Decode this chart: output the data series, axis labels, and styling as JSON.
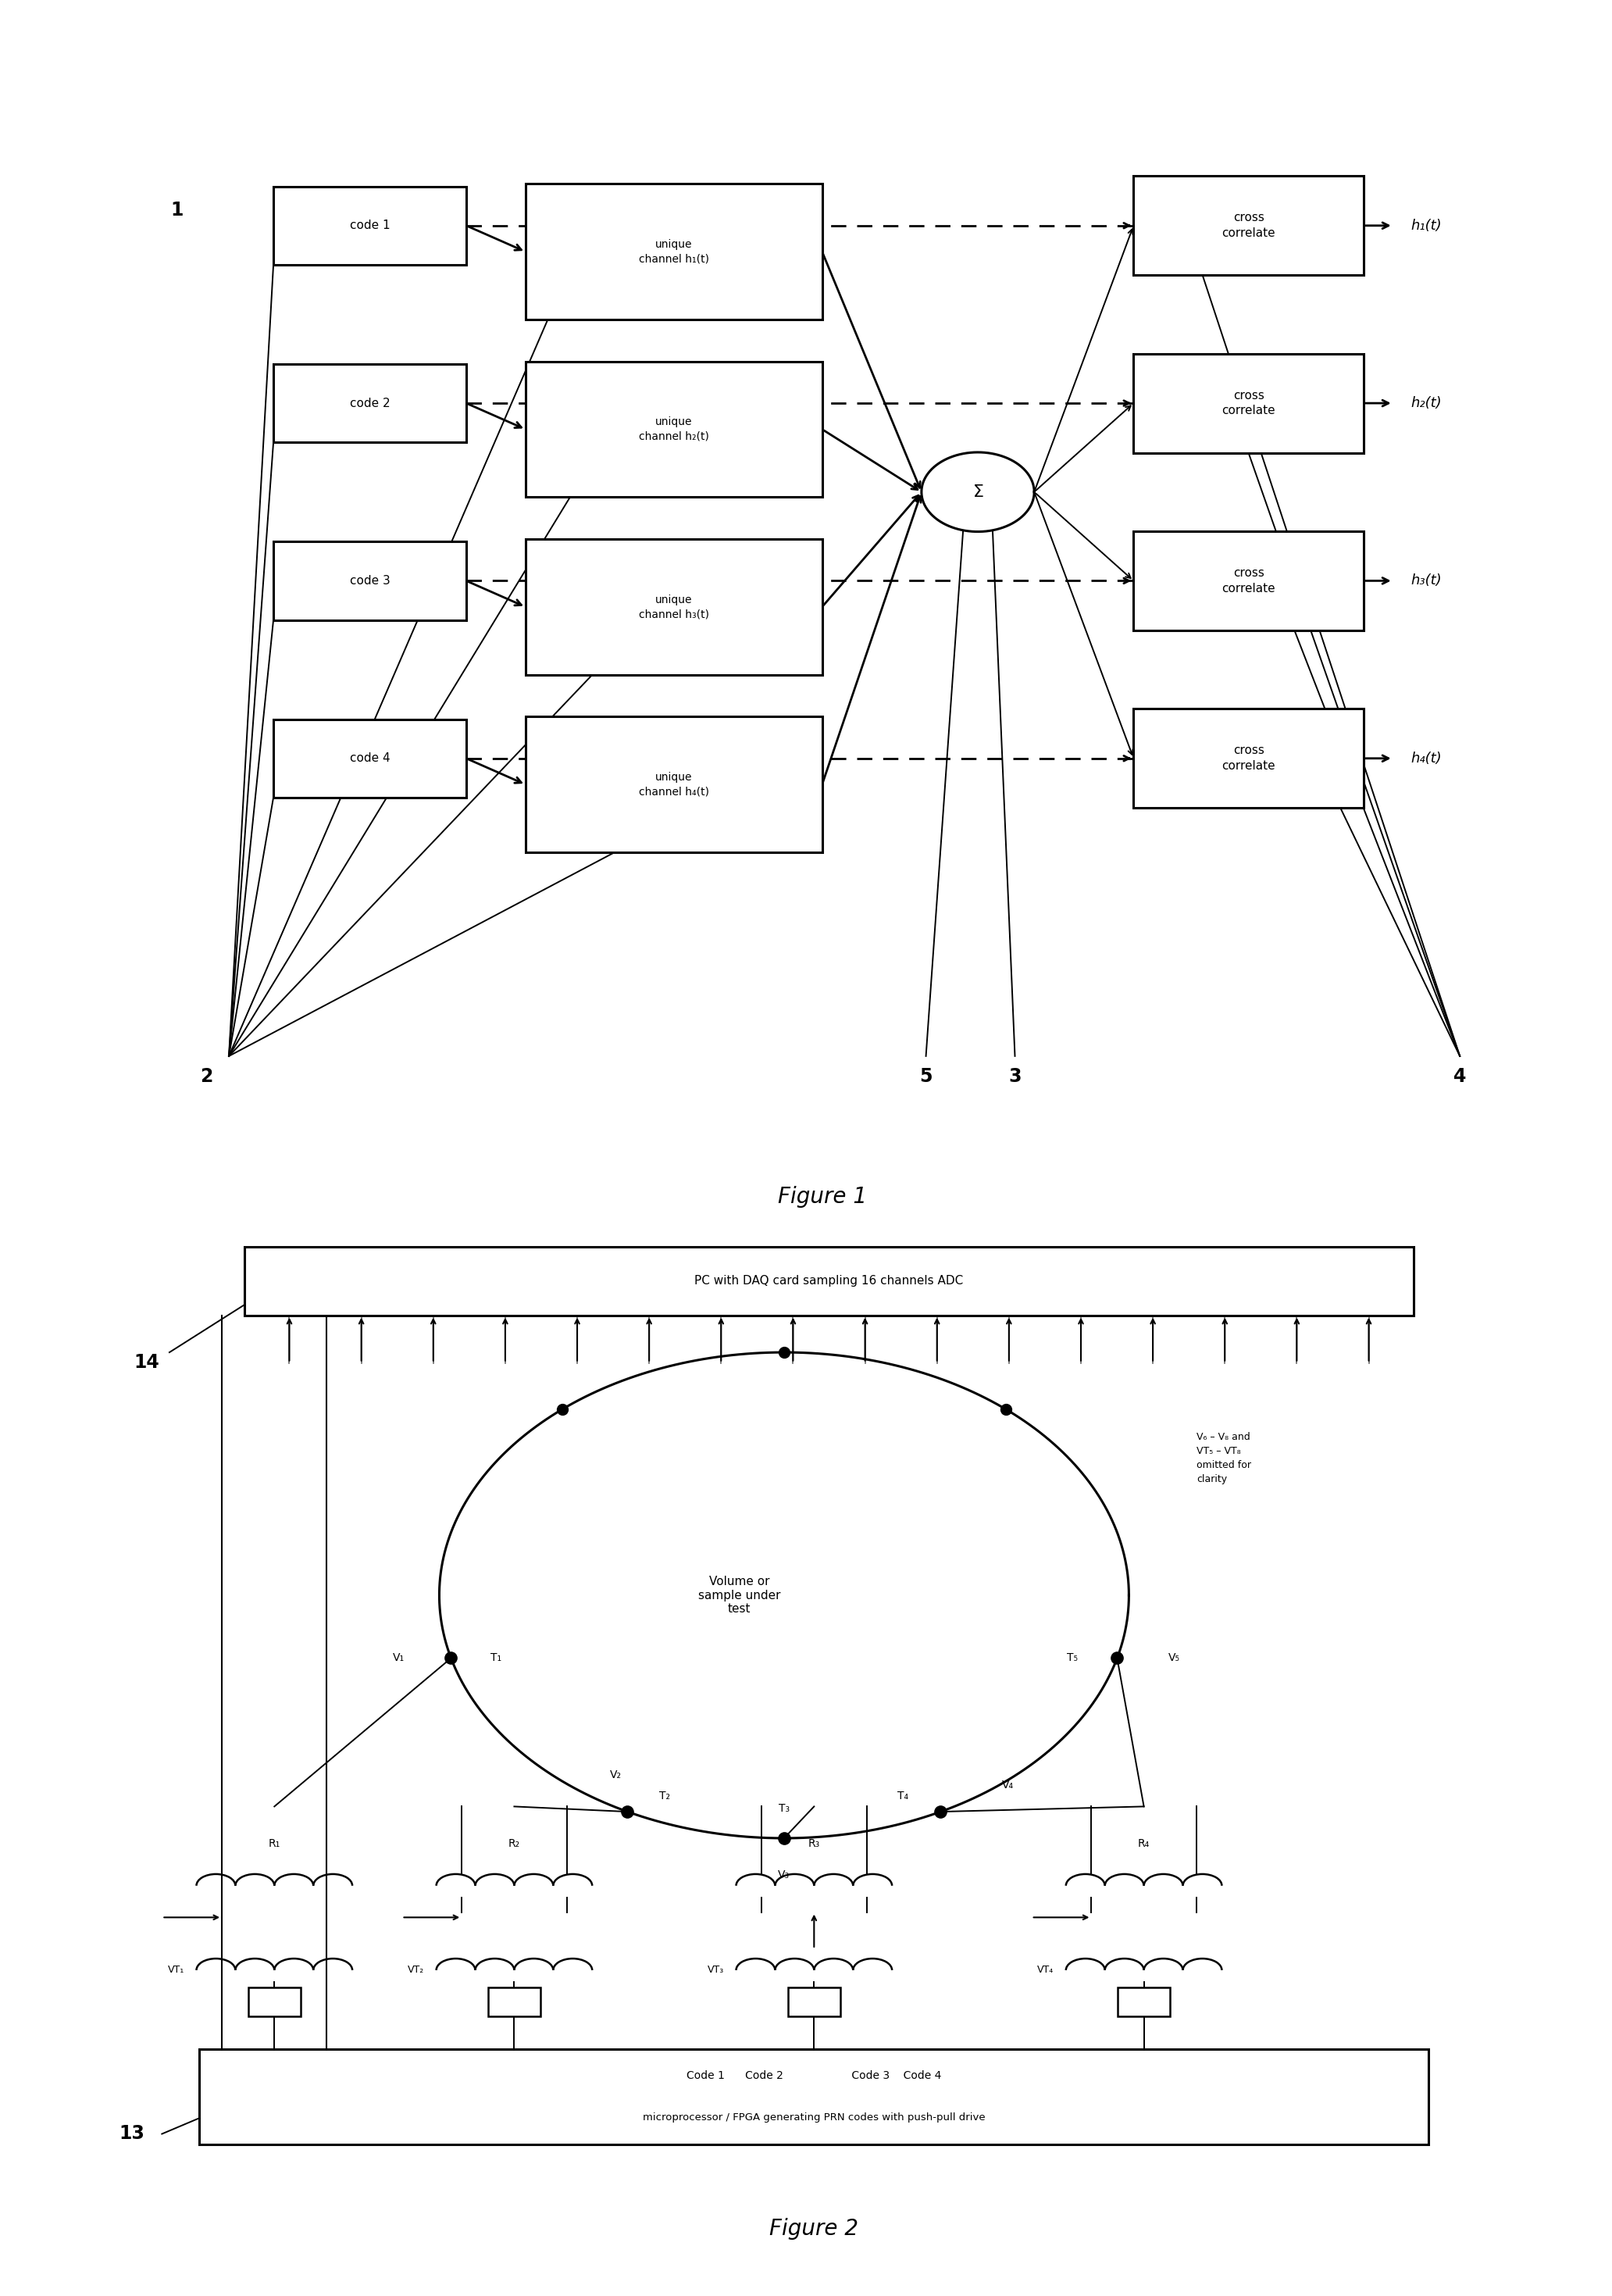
{
  "fig1_title": "Figure 1",
  "fig2_title": "Figure 2",
  "codes": [
    "code 1",
    "code 2",
    "code 3",
    "code 4"
  ],
  "channels": [
    "unique\nchannel h₁(t)",
    "unique\nchannel h₂(t)",
    "unique\nchannel h₃(t)",
    "unique\nchannel h₄(t)"
  ],
  "correlators": [
    "cross\ncorrelate",
    "cross\ncorrelate",
    "cross\ncorrelate",
    "cross\ncorrelate"
  ],
  "outputs": [
    "h₁(t)",
    "h₂(t)",
    "h₃(t)",
    "h₄(t)"
  ],
  "pc_label": "PC with DAQ card sampling 16 channels ADC",
  "micro_line1": "Code 1      Code 2                    Code 3    Code 4",
  "micro_line2": "microprocessor / FPGA generating PRN codes with push-pull drive",
  "omit_text": "V₆ – V₈ and\nVT₅ – VT₈\nomitted for\nclarity",
  "volume_text": "Volume or\nsample under\ntest",
  "R_labels": [
    "R₁",
    "R₂",
    "R₃",
    "R₄"
  ],
  "VT_labels": [
    "VT₁",
    "VT₂",
    "VT₃",
    "VT₄"
  ],
  "T_labels": [
    "T₁",
    "T₂",
    "T₃",
    "T₄",
    "T₅"
  ],
  "V_labels": [
    "V₁",
    "V₂",
    "V₃",
    "V₄",
    "V₅"
  ]
}
